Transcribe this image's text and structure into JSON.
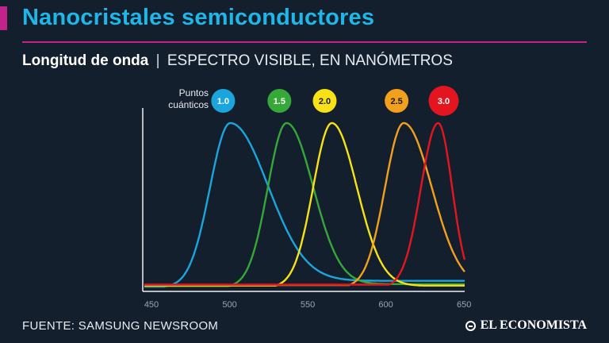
{
  "header": {
    "title": "Nanocristales semiconductores",
    "subtitle_bold": "Longitud de onda",
    "subtitle_sep": "|",
    "subtitle_rest": "ESPECTRO VISIBLE, EN NANÓMETROS"
  },
  "footer": {
    "source": "FUENTE: SAMSUNG NEWSROOM",
    "brand": "EL ECONOMISTA"
  },
  "legend_title_line1": "Puntos",
  "legend_title_line2": "cuánticos",
  "chart_data": {
    "type": "line",
    "xlim": [
      450,
      655
    ],
    "ylim": [
      0,
      1
    ],
    "x_ticks": [
      "450",
      "500",
      "550",
      "600",
      "650"
    ],
    "grid": false,
    "legend": "top",
    "series": [
      {
        "name": "1.0",
        "color": "#1aa6dc",
        "peak": 505,
        "sigma_left": 13,
        "sigma_right": 24,
        "tail": 0.04
      },
      {
        "name": "1.5",
        "color": "#35a838",
        "peak": 541,
        "sigma_left": 12,
        "sigma_right": 17,
        "tail": 0.02
      },
      {
        "name": "2.0",
        "color": "#f7e217",
        "peak": 570,
        "sigma_left": 12,
        "sigma_right": 16,
        "tail": 0.01
      },
      {
        "name": "2.5",
        "color": "#f2a01d",
        "peak": 616,
        "sigma_left": 12,
        "sigma_right": 18,
        "tail": 0.0
      },
      {
        "name": "3.0",
        "color": "#e3161f",
        "peak": 638,
        "sigma_left": 11,
        "sigma_right": 9,
        "tail": 0.0
      }
    ]
  }
}
